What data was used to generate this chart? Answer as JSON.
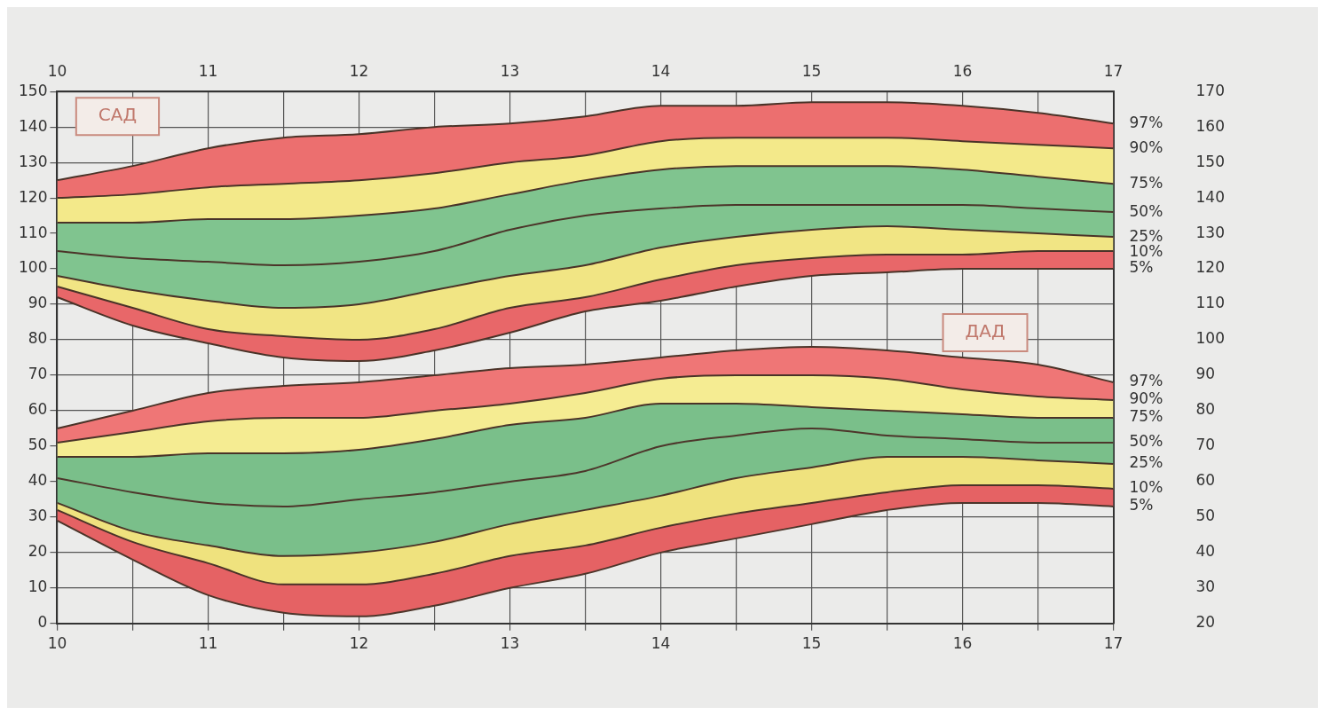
{
  "chart_data": {
    "type": "area",
    "x": [
      10,
      10.5,
      11,
      11.5,
      12,
      12.5,
      13,
      13.5,
      14,
      14.5,
      15,
      15.5,
      16,
      16.5,
      17
    ],
    "series": [
      {
        "name": "97%",
        "color": "#ec6f6f",
        "values": [
          125,
          129,
          134,
          137,
          138,
          140,
          141,
          143,
          146,
          146,
          147,
          147,
          146,
          144,
          141
        ]
      },
      {
        "name": "90%",
        "color": "#f3e98a",
        "values": [
          120,
          121,
          123,
          124,
          125,
          127,
          130,
          132,
          136,
          137,
          137,
          137,
          136,
          135,
          134
        ]
      },
      {
        "name": "75%",
        "color": "#80c48f",
        "values": [
          113,
          113,
          114,
          114,
          115,
          117,
          121,
          125,
          128,
          129,
          129,
          129,
          128,
          126,
          124
        ]
      },
      {
        "name": "25%",
        "color": "#f1e584",
        "values": [
          98,
          94,
          91,
          89,
          90,
          94,
          98,
          101,
          106,
          109,
          111,
          112,
          111,
          110,
          109
        ]
      },
      {
        "name": "10%",
        "color": "#e86769",
        "values": [
          95,
          89,
          83,
          81,
          80,
          83,
          89,
          92,
          97,
          101,
          103,
          104,
          104,
          105,
          105
        ]
      },
      {
        "name": "5%",
        "type": "line",
        "color": "#4a3328",
        "values": [
          92,
          84,
          79,
          75,
          74,
          77,
          82,
          88,
          91,
          95,
          98,
          99,
          100,
          100,
          100
        ]
      },
      {
        "name": "50%",
        "type": "line",
        "color": "#4b3429",
        "values": [
          105,
          103,
          102,
          101,
          102,
          105,
          111,
          115,
          117,
          118,
          118,
          118,
          118,
          117,
          116
        ]
      },
      {
        "name": "97%",
        "color": "#ef7676",
        "values": [
          55,
          60,
          65,
          67,
          68,
          70,
          72,
          73,
          75,
          77,
          78,
          77,
          75,
          73,
          68
        ]
      },
      {
        "name": "90%",
        "color": "#f5ec92",
        "values": [
          51,
          54,
          57,
          58,
          58,
          60,
          62,
          65,
          69,
          70,
          70,
          69,
          66,
          64,
          63
        ]
      },
      {
        "name": "75%",
        "color": "#7abf8a",
        "values": [
          47,
          47,
          48,
          48,
          49,
          52,
          56,
          58,
          62,
          62,
          61,
          60,
          59,
          58,
          58
        ]
      },
      {
        "name": "25%",
        "color": "#efe27e",
        "values": [
          34,
          26,
          22,
          19,
          20,
          23,
          28,
          32,
          36,
          41,
          44,
          47,
          47,
          46,
          45
        ]
      },
      {
        "name": "10%",
        "color": "#e56264",
        "values": [
          32,
          23,
          17,
          11,
          11,
          14,
          19,
          22,
          27,
          31,
          34,
          37,
          39,
          39,
          38
        ]
      },
      {
        "name": "5%",
        "type": "line",
        "color": "#4c352a",
        "values": [
          29,
          18,
          8,
          3,
          2,
          5,
          10,
          14,
          20,
          24,
          28,
          32,
          34,
          34,
          33
        ]
      },
      {
        "name": "50%",
        "type": "line",
        "color": "#4d362b",
        "values": [
          41,
          37,
          34,
          33,
          35,
          37,
          40,
          43,
          50,
          53,
          55,
          53,
          52,
          51,
          51
        ]
      }
    ],
    "xlim": [
      10,
      17
    ],
    "xticks": [
      10,
      {
        "value": 10.5,
        "label": null
      },
      11,
      {
        "value": 11.5,
        "label": null
      },
      12,
      {
        "value": 12.5,
        "label": null
      },
      13,
      {
        "value": 13.5,
        "label": null
      },
      14,
      {
        "value": 14.5,
        "label": null
      },
      15,
      {
        "value": 15.5,
        "label": null
      },
      16,
      {
        "value": 16.5,
        "label": null
      },
      17
    ],
    "x2lim": [
      10,
      17
    ],
    "x2ticks": [
      10,
      11,
      12,
      13,
      14,
      15,
      16,
      17
    ],
    "ylim": [
      0,
      150
    ],
    "yticks": [
      0,
      10,
      20,
      30,
      40,
      50,
      60,
      70,
      80,
      90,
      100,
      110,
      120,
      130,
      140,
      150
    ],
    "y2lim": [
      20,
      170
    ],
    "y2ticks": [
      20,
      30,
      40,
      50,
      60,
      70,
      80,
      90,
      100,
      110,
      120,
      130,
      140,
      150,
      160,
      170
    ],
    "annotations": [
      "САД",
      "ДАД"
    ],
    "grid": true,
    "legend": false
  }
}
